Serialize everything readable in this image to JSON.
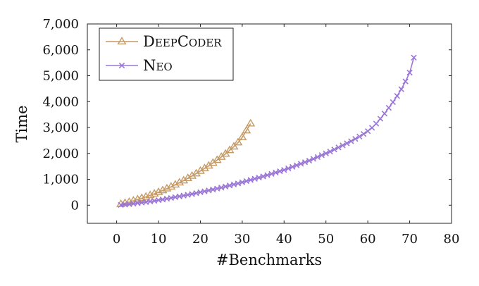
{
  "chart_data": {
    "type": "line",
    "title": "",
    "xlabel": "#Benchmarks",
    "ylabel": "Time",
    "xlim": [
      -7,
      80
    ],
    "ylim": [
      -700,
      7000
    ],
    "xticks": [
      0,
      10,
      20,
      30,
      40,
      50,
      60,
      70,
      80
    ],
    "xtick_labels": [
      "0",
      "10",
      "20",
      "30",
      "40",
      "50",
      "60",
      "70",
      "80"
    ],
    "yticks": [
      0,
      1000,
      2000,
      3000,
      4000,
      5000,
      6000,
      7000
    ],
    "ytick_labels": [
      "0",
      "1,000",
      "2,000",
      "3,000",
      "4,000",
      "5,000",
      "6,000",
      "7,000"
    ],
    "grid": false,
    "legend_position": "top-left",
    "series": [
      {
        "name": "DeepCoder",
        "legend_parts": [
          [
            "D",
            "big"
          ],
          [
            "EEP",
            "small"
          ],
          [
            "C",
            "big"
          ],
          [
            "ODER",
            "small"
          ]
        ],
        "color": "#c59a66",
        "marker": "triangle",
        "x": [
          1,
          2,
          3,
          4,
          5,
          6,
          7,
          8,
          9,
          10,
          11,
          12,
          13,
          14,
          15,
          16,
          17,
          18,
          19,
          20,
          21,
          22,
          23,
          24,
          25,
          26,
          27,
          28,
          29,
          30,
          31,
          32
        ],
        "y": [
          40,
          80,
          120,
          170,
          220,
          270,
          320,
          380,
          440,
          500,
          570,
          640,
          710,
          790,
          870,
          950,
          1040,
          1130,
          1220,
          1320,
          1420,
          1520,
          1630,
          1740,
          1860,
          1980,
          2120,
          2260,
          2420,
          2620,
          2880,
          3150
        ]
      },
      {
        "name": "Neo",
        "legend_parts": [
          [
            "N",
            "big"
          ],
          [
            "EO",
            "small"
          ]
        ],
        "color": "#9b76d6",
        "marker": "x",
        "x": [
          1,
          2,
          3,
          4,
          5,
          6,
          7,
          8,
          9,
          10,
          11,
          12,
          13,
          14,
          15,
          16,
          17,
          18,
          19,
          20,
          21,
          22,
          23,
          24,
          25,
          26,
          27,
          28,
          29,
          30,
          31,
          32,
          33,
          34,
          35,
          36,
          37,
          38,
          39,
          40,
          41,
          42,
          43,
          44,
          45,
          46,
          47,
          48,
          49,
          50,
          51,
          52,
          53,
          54,
          55,
          56,
          57,
          58,
          59,
          60,
          61,
          62,
          63,
          64,
          65,
          66,
          67,
          68,
          69,
          70,
          71
        ],
        "y": [
          10,
          25,
          40,
          60,
          80,
          100,
          120,
          145,
          170,
          195,
          220,
          250,
          280,
          310,
          340,
          370,
          400,
          430,
          465,
          500,
          535,
          570,
          605,
          640,
          680,
          720,
          760,
          800,
          840,
          885,
          930,
          975,
          1020,
          1065,
          1110,
          1160,
          1210,
          1260,
          1310,
          1360,
          1420,
          1480,
          1540,
          1600,
          1660,
          1720,
          1790,
          1860,
          1930,
          2000,
          2070,
          2150,
          2230,
          2310,
          2390,
          2470,
          2560,
          2650,
          2750,
          2860,
          2990,
          3150,
          3340,
          3540,
          3760,
          3980,
          4220,
          4480,
          4780,
          5120,
          5700
        ]
      }
    ]
  }
}
